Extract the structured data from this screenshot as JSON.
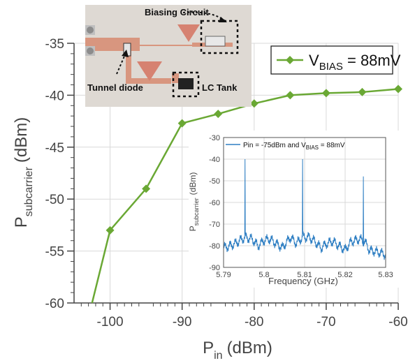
{
  "colors": {
    "main_series": "#6aa834",
    "inset_series": "#2f7fc3",
    "grid": "#d9d9d9",
    "axis": "#444444"
  },
  "photo": {
    "labels": {
      "biasing_circuit": "Biasing Circuit",
      "tunnel_diode": "Tunnel diode",
      "lc_tank": "LC Tank"
    }
  },
  "chart_data": [
    {
      "type": "line",
      "xlabel": "P",
      "xlabel_sub": "in",
      "xlabel_unit": "(dBm)",
      "ylabel": "P",
      "ylabel_sub": "subcarrier",
      "ylabel_unit": "(dBm)",
      "xlim": [
        -105,
        -60
      ],
      "ylim": [
        -60,
        -35
      ],
      "xticks": [
        -100,
        -90,
        -80,
        -70,
        -60
      ],
      "yticks": [
        -35,
        -40,
        -45,
        -50,
        -55,
        -60
      ],
      "grid": true,
      "legend_position": "top-right",
      "series": [
        {
          "name": "V",
          "name_sub": "BIAS",
          "name_suffix": " = 88mV",
          "marker": "diamond",
          "x": [
            -102.5,
            -100,
            -95,
            -90,
            -85,
            -80,
            -75,
            -70,
            -65,
            -60
          ],
          "y": [
            -60,
            -53,
            -49,
            -42.7,
            -41.8,
            -40.8,
            -40,
            -39.8,
            -39.7,
            -39.4
          ]
        }
      ]
    },
    {
      "type": "line",
      "xlabel": "Frequency (GHz)",
      "ylabel": "P",
      "ylabel_sub": "subcarrier",
      "ylabel_unit": "(dBm)",
      "xlim": [
        5.79,
        5.83
      ],
      "ylim": [
        -90,
        -30
      ],
      "xticks": [
        "5.79",
        "5.8",
        "5.81",
        "5.82",
        "5.83"
      ],
      "yticks": [
        -30,
        -40,
        -50,
        -60,
        -70,
        -80,
        -90
      ],
      "grid": true,
      "legend_position": "top-left",
      "series": [
        {
          "name": "Pin = -75dBm and V",
          "name_sub": "BIAS",
          "name_suffix": " = 88mV",
          "baseline": [
            [
              5.79,
              -81
            ],
            [
              5.793,
              -79
            ],
            [
              5.7945,
              -77
            ],
            [
              5.7953,
              -76
            ],
            [
              5.797,
              -77
            ],
            [
              5.7985,
              -80
            ],
            [
              5.8,
              -77.5
            ],
            [
              5.8015,
              -77
            ],
            [
              5.803,
              -79
            ],
            [
              5.8045,
              -81
            ],
            [
              5.8065,
              -76
            ],
            [
              5.808,
              -79
            ],
            [
              5.8095,
              -76
            ],
            [
              5.811,
              -76
            ],
            [
              5.8125,
              -78
            ],
            [
              5.814,
              -81
            ],
            [
              5.8155,
              -79
            ],
            [
              5.817,
              -78
            ],
            [
              5.8185,
              -80
            ],
            [
              5.82,
              -82
            ],
            [
              5.8215,
              -78
            ],
            [
              5.8235,
              -77
            ],
            [
              5.8248,
              -78
            ],
            [
              5.826,
              -82
            ],
            [
              5.828,
              -83
            ],
            [
              5.83,
              -84
            ]
          ],
          "peaks": [
            [
              5.7953,
              -40
            ],
            [
              5.8095,
              -40
            ],
            [
              5.8245,
              -48
            ]
          ]
        }
      ]
    }
  ]
}
